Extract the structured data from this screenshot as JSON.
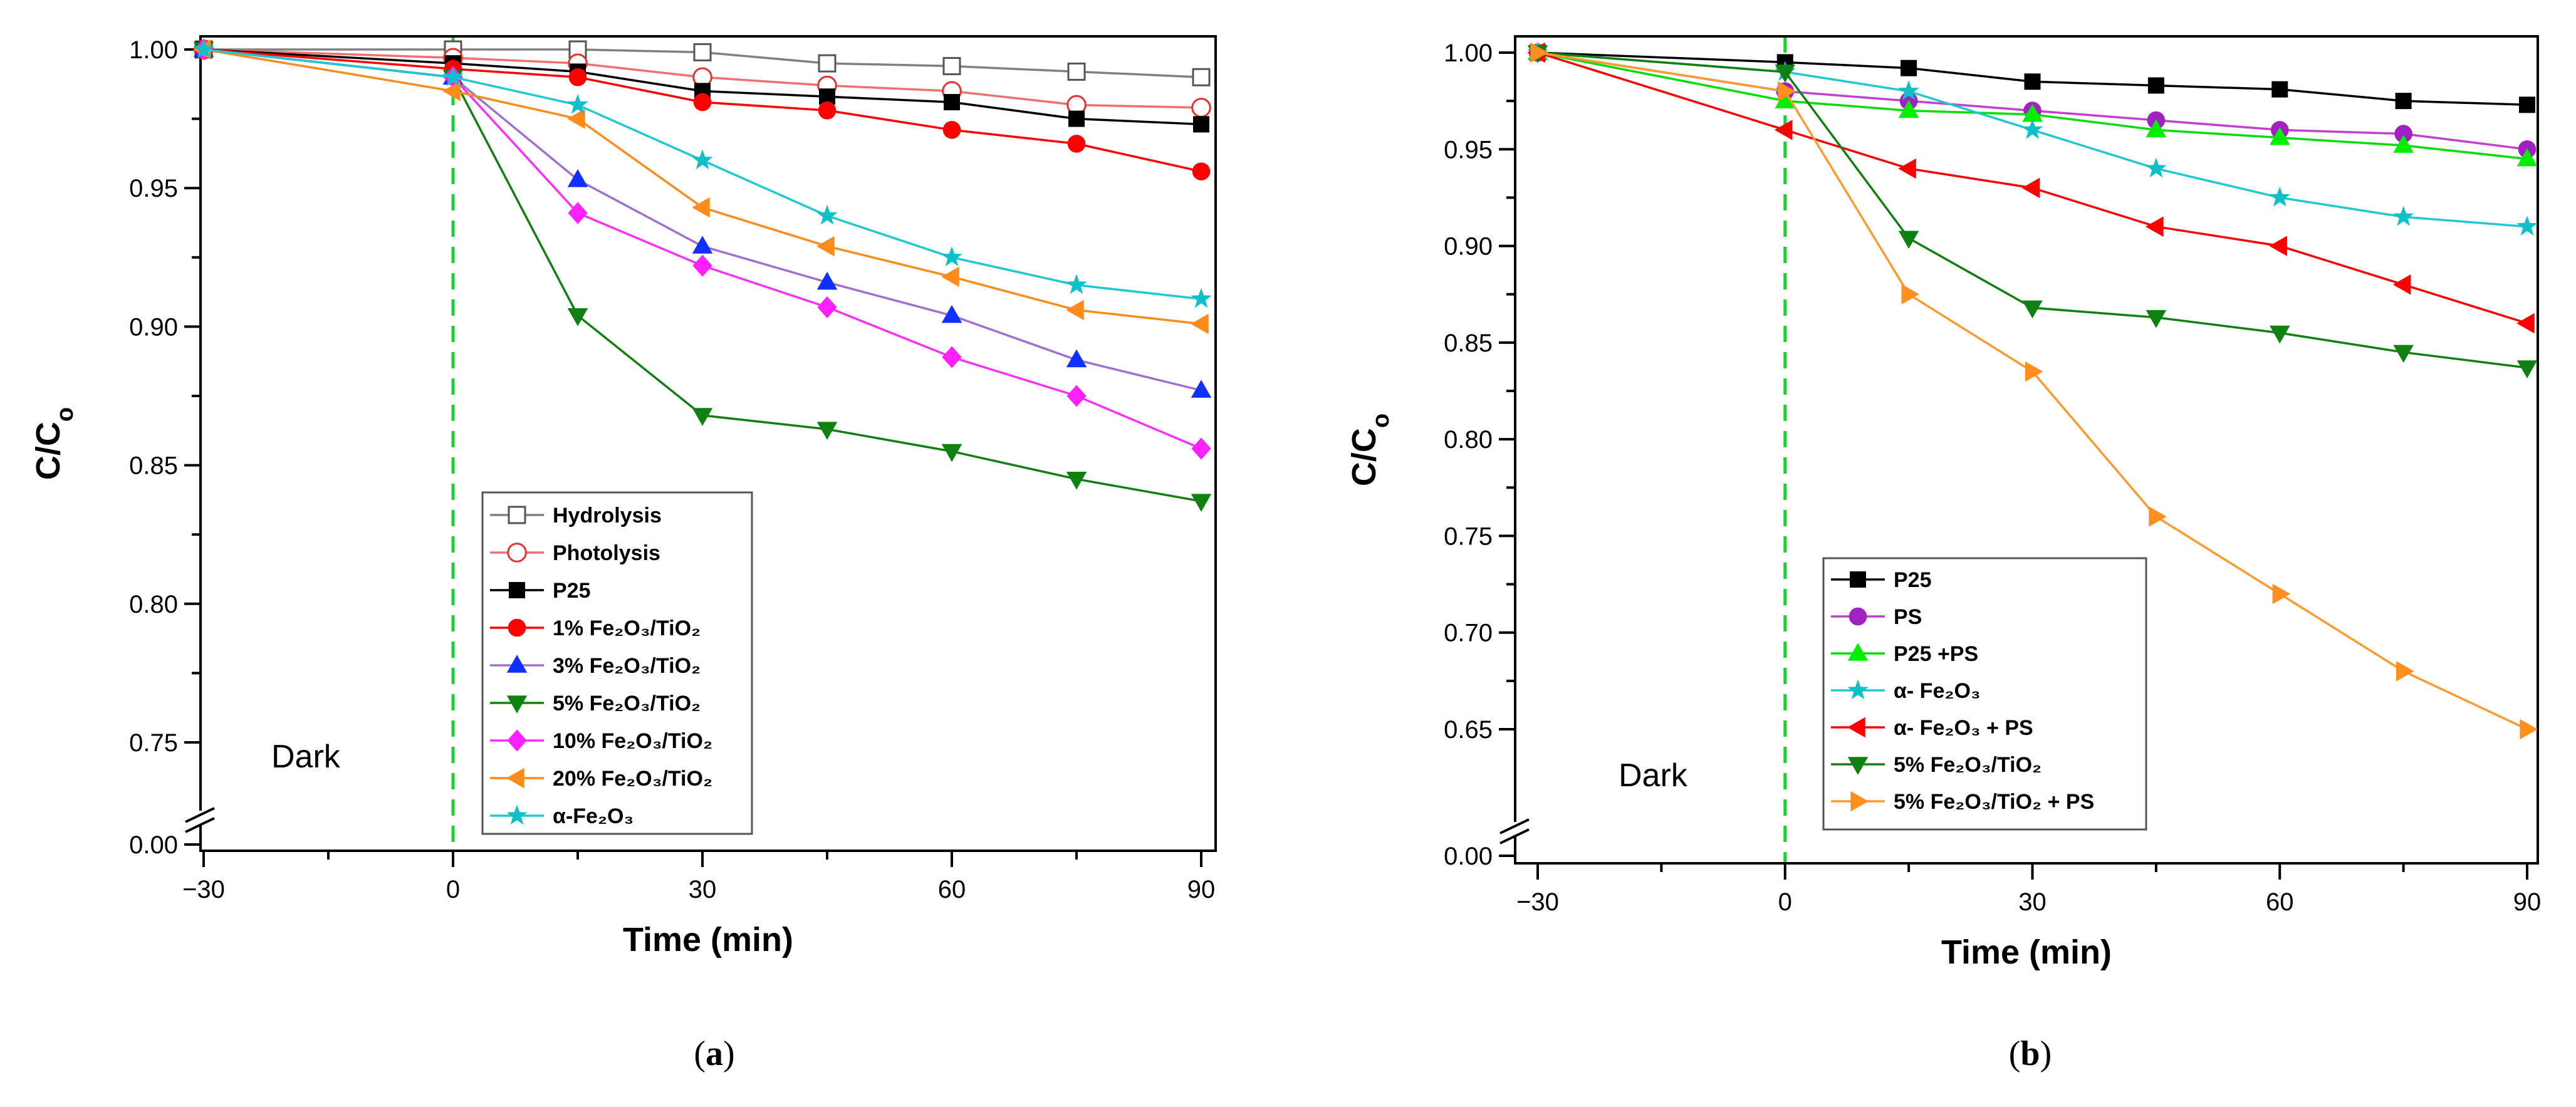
{
  "chart_data": [
    {
      "type": "line",
      "panel": "(a)",
      "caption_letter": "a",
      "xlabel": "Time (min)",
      "ylabel": {
        "main": "C/C",
        "sub": "o"
      },
      "xlim": [
        -30,
        90
      ],
      "xticks": [
        -30,
        0,
        30,
        60,
        90
      ],
      "xtick_labels": [
        "−30",
        "0",
        "30",
        "60",
        "90"
      ],
      "ylim_upper": [
        0.75,
        1.0
      ],
      "yticks": [
        0.0,
        0.75,
        0.8,
        0.85,
        0.9,
        0.95,
        1.0
      ],
      "ytick_labels": [
        "0.00",
        "0.75",
        "0.80",
        "0.85",
        "0.90",
        "0.95",
        "1.00"
      ],
      "axis_break": true,
      "annotation": "Dark",
      "vline_x": 0,
      "legend_position": "lower-center",
      "x": [
        -30,
        0,
        15,
        30,
        45,
        60,
        75,
        90
      ],
      "series": [
        {
          "name": "Hydrolysis",
          "marker": "square-open",
          "color": "#808080",
          "mcolor": "#555555",
          "values": [
            1.0,
            1.0,
            1.0,
            0.999,
            0.995,
            0.994,
            0.992,
            0.99
          ]
        },
        {
          "name": "Photolysis",
          "marker": "circle-open",
          "color": "#f07070",
          "mcolor": "#e83030",
          "values": [
            1.0,
            0.997,
            0.995,
            0.99,
            0.987,
            0.985,
            0.98,
            0.979
          ]
        },
        {
          "name": "P25",
          "marker": "square",
          "color": "#000000",
          "mcolor": "#000000",
          "values": [
            1.0,
            0.995,
            0.992,
            0.985,
            0.983,
            0.981,
            0.975,
            0.973
          ]
        },
        {
          "name": "1% Fe₂O₃/TiO₂",
          "marker": "circle",
          "color": "#ff0000",
          "mcolor": "#ff0000",
          "values": [
            1.0,
            0.993,
            0.99,
            0.981,
            0.978,
            0.971,
            0.966,
            0.956
          ]
        },
        {
          "name": "3% Fe₂O₃/TiO₂",
          "marker": "triangle-up",
          "color": "#a070d0",
          "mcolor": "#1030ff",
          "values": [
            1.0,
            0.99,
            0.953,
            0.929,
            0.916,
            0.904,
            0.888,
            0.877
          ]
        },
        {
          "name": "5% Fe₂O₃/TiO₂",
          "marker": "triangle-down",
          "color": "#108010",
          "mcolor": "#108010",
          "values": [
            1.0,
            0.99,
            0.904,
            0.868,
            0.863,
            0.855,
            0.845,
            0.837
          ]
        },
        {
          "name": "10% Fe₂O₃/TiO₂",
          "marker": "diamond",
          "color": "#ff30ff",
          "mcolor": "#ff20ff",
          "values": [
            1.0,
            0.99,
            0.941,
            0.922,
            0.907,
            0.889,
            0.875,
            0.856
          ]
        },
        {
          "name": "20% Fe₂O₃/TiO₂",
          "marker": "triangle-left",
          "color": "#ff8c1a",
          "mcolor": "#ff8c1a",
          "values": [
            1.0,
            0.985,
            0.975,
            0.943,
            0.929,
            0.918,
            0.906,
            0.901
          ]
        },
        {
          "name": "α-Fe₂O₃",
          "marker": "star",
          "color": "#20c8d0",
          "mcolor": "#10c0c8",
          "values": [
            1.0,
            0.99,
            0.98,
            0.96,
            0.94,
            0.925,
            0.915,
            0.91
          ]
        }
      ]
    },
    {
      "type": "line",
      "panel": "(b)",
      "caption_letter": "b",
      "xlabel": "Time (min)",
      "ylabel": {
        "main": "C/C",
        "sub": "o"
      },
      "xlim": [
        -30,
        90
      ],
      "xticks": [
        -30,
        0,
        30,
        60,
        90
      ],
      "xtick_labels": [
        "−30",
        "0",
        "30",
        "60",
        "90"
      ],
      "ylim_upper": [
        0.65,
        1.0
      ],
      "yticks": [
        0.0,
        0.65,
        0.7,
        0.75,
        0.8,
        0.85,
        0.9,
        0.95,
        1.0
      ],
      "ytick_labels": [
        "0.00",
        "0.65",
        "0.70",
        "0.75",
        "0.80",
        "0.85",
        "0.90",
        "0.95",
        "1.00"
      ],
      "axis_break": true,
      "annotation": "Dark",
      "vline_x": 0,
      "legend_position": "lower-center",
      "x": [
        -30,
        0,
        15,
        30,
        45,
        60,
        75,
        90
      ],
      "series": [
        {
          "name": "P25",
          "marker": "square",
          "color": "#000000",
          "mcolor": "#000000",
          "values": [
            1.0,
            0.995,
            0.992,
            0.985,
            0.983,
            0.981,
            0.975,
            0.973
          ]
        },
        {
          "name": "PS",
          "marker": "circle",
          "color": "#c040d0",
          "mcolor": "#a020c0",
          "values": [
            1.0,
            0.98,
            0.975,
            0.97,
            0.965,
            0.96,
            0.958,
            0.95
          ]
        },
        {
          "name": "P25 +PS",
          "marker": "triangle-up",
          "color": "#00dd00",
          "mcolor": "#00ee00",
          "values": [
            1.0,
            0.975,
            0.97,
            0.968,
            0.96,
            0.956,
            0.952,
            0.945
          ]
        },
        {
          "name": "α- Fe₂O₃",
          "marker": "star",
          "color": "#20c8d0",
          "mcolor": "#10c0c8",
          "values": [
            1.0,
            0.99,
            0.98,
            0.96,
            0.94,
            0.925,
            0.915,
            0.91
          ]
        },
        {
          "name": "α- Fe₂O₃ + PS",
          "marker": "triangle-left",
          "color": "#ff0000",
          "mcolor": "#ff0000",
          "values": [
            1.0,
            0.96,
            0.94,
            0.93,
            0.91,
            0.9,
            0.88,
            0.86
          ]
        },
        {
          "name": "5% Fe₂O₃/TiO₂",
          "marker": "triangle-down",
          "color": "#108010",
          "mcolor": "#108010",
          "values": [
            1.0,
            0.99,
            0.904,
            0.868,
            0.863,
            0.855,
            0.845,
            0.837
          ]
        },
        {
          "name": "5% Fe₂O₃/TiO₂ + PS",
          "marker": "triangle-right",
          "color": "#ff9a30",
          "mcolor": "#ff9020",
          "values": [
            1.0,
            0.98,
            0.875,
            0.835,
            0.76,
            0.72,
            0.68,
            0.65
          ]
        }
      ]
    }
  ]
}
